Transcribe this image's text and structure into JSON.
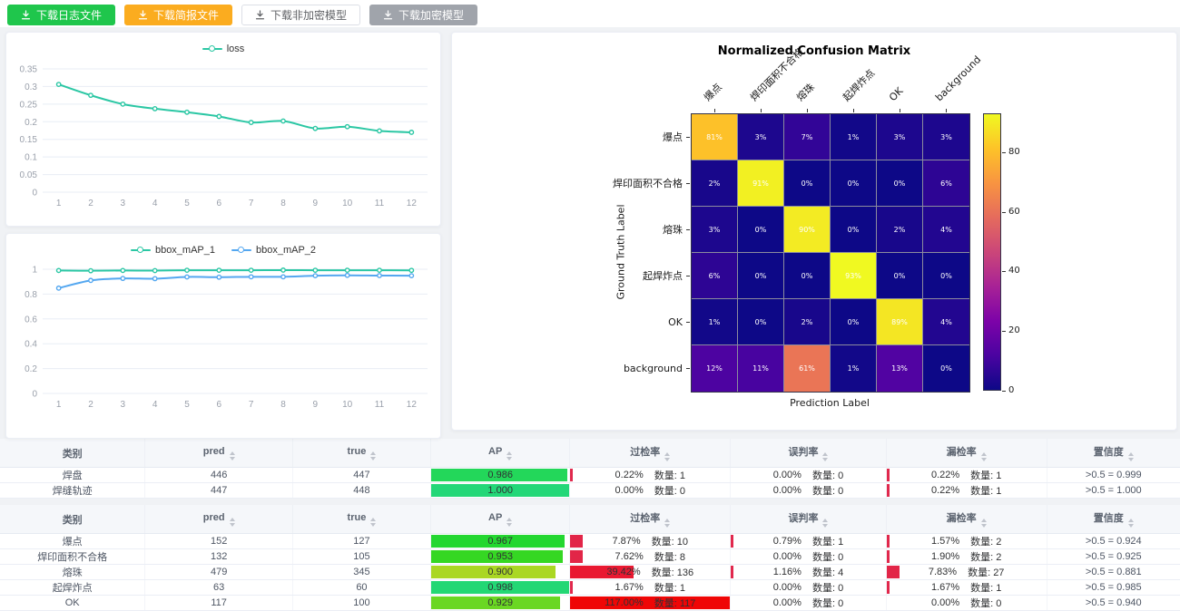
{
  "toolbar": {
    "buttons": [
      {
        "id": "download-log",
        "label": "下载日志文件",
        "bg": "#1fc64c",
        "fg": "#ffffff",
        "border": "#1fc64c"
      },
      {
        "id": "download-brief",
        "label": "下载简报文件",
        "bg": "#fbac1f",
        "fg": "#ffffff",
        "border": "#fbac1f"
      },
      {
        "id": "download-plain-model",
        "label": "下载非加密模型",
        "bg": "#ffffff",
        "fg": "#606266",
        "border": "#dcdfe6"
      },
      {
        "id": "download-encrypted-model",
        "label": "下载加密模型",
        "bg": "#a0a4ab",
        "fg": "#ffffff",
        "border": "#a0a4ab"
      }
    ]
  },
  "chart_data": [
    {
      "type": "line",
      "title": "",
      "x": [
        1,
        2,
        3,
        4,
        5,
        6,
        7,
        8,
        9,
        10,
        11,
        12
      ],
      "series": [
        {
          "name": "loss",
          "color": "#2bc7a4",
          "values": [
            0.306,
            0.275,
            0.25,
            0.237,
            0.227,
            0.215,
            0.198,
            0.202,
            0.181,
            0.186,
            0.174,
            0.17
          ]
        }
      ],
      "ylim": [
        0,
        0.35
      ],
      "yticks": [
        "0",
        "0.05",
        "0.1",
        "0.15",
        "0.2",
        "0.25",
        "0.3",
        "0.35"
      ],
      "grid": true,
      "legend_position": "top"
    },
    {
      "type": "line",
      "title": "",
      "x": [
        1,
        2,
        3,
        4,
        5,
        6,
        7,
        8,
        9,
        10,
        11,
        12
      ],
      "series": [
        {
          "name": "bbox_mAP_1",
          "color": "#2bc7a4",
          "values": [
            0.99,
            0.988,
            0.99,
            0.989,
            0.992,
            0.992,
            0.992,
            0.993,
            0.992,
            0.992,
            0.992,
            0.991
          ]
        },
        {
          "name": "bbox_mAP_2",
          "color": "#54a7f0",
          "values": [
            0.848,
            0.91,
            0.926,
            0.924,
            0.938,
            0.936,
            0.939,
            0.939,
            0.948,
            0.951,
            0.949,
            0.948
          ]
        }
      ],
      "ylim": [
        0,
        1
      ],
      "yticks": [
        "0",
        "0.2",
        "0.4",
        "0.6",
        "0.8",
        "1"
      ],
      "grid": true,
      "legend_position": "top"
    },
    {
      "type": "heatmap",
      "title": "Normalized Confusion Matrix",
      "xlabel": "Prediction Label",
      "ylabel": "Ground Truth Label",
      "labels": [
        "爆点",
        "焊印面积不合格",
        "熔珠",
        "起焊炸点",
        "OK",
        "background"
      ],
      "matrix": [
        [
          81,
          3,
          7,
          1,
          3,
          3
        ],
        [
          2,
          91,
          0,
          0,
          0,
          6
        ],
        [
          3,
          0,
          90,
          0,
          2,
          4
        ],
        [
          6,
          0,
          0,
          93,
          0,
          0
        ],
        [
          1,
          0,
          2,
          0,
          89,
          4
        ],
        [
          12,
          11,
          61,
          1,
          13,
          0
        ]
      ],
      "unit": "%",
      "vmax": 93,
      "colorbar_ticks": [
        0,
        20,
        40,
        60,
        80
      ],
      "colormap": "plasma",
      "colormap_stops": [
        [
          0,
          "#0d0887"
        ],
        [
          0.125,
          "#4b03a1"
        ],
        [
          0.25,
          "#7d03a8"
        ],
        [
          0.375,
          "#a82296"
        ],
        [
          0.5,
          "#cb4679"
        ],
        [
          0.625,
          "#e56b5d"
        ],
        [
          0.75,
          "#f89441"
        ],
        [
          0.875,
          "#fdc328"
        ],
        [
          1,
          "#f0f921"
        ]
      ]
    }
  ],
  "tables": [
    {
      "headers": [
        {
          "label": "类别",
          "sortable": false
        },
        {
          "label": "pred",
          "sortable": true
        },
        {
          "label": "true",
          "sortable": true
        },
        {
          "label": "AP",
          "sortable": true
        },
        {
          "label": "过检率",
          "sortable": true
        },
        {
          "label": "误判率",
          "sortable": true
        },
        {
          "label": "漏检率",
          "sortable": true
        },
        {
          "label": "置信度",
          "sortable": true
        }
      ],
      "count_label": "数量:",
      "rows": [
        {
          "category": "焊盘",
          "pred": "446",
          "true": "447",
          "ap": "0.986",
          "over": {
            "pct": "0.22%",
            "count": "1"
          },
          "mis": {
            "pct": "0.00%",
            "count": "0"
          },
          "miss": {
            "pct": "0.22%",
            "count": "1"
          },
          "conf": ">0.5 = 0.999"
        },
        {
          "category": "焊缝轨迹",
          "pred": "447",
          "true": "448",
          "ap": "1.000",
          "over": {
            "pct": "0.00%",
            "count": "0"
          },
          "mis": {
            "pct": "0.00%",
            "count": "0"
          },
          "miss": {
            "pct": "0.22%",
            "count": "1"
          },
          "conf": ">0.5 = 1.000"
        }
      ]
    },
    {
      "headers": [
        {
          "label": "类别",
          "sortable": false
        },
        {
          "label": "pred",
          "sortable": true
        },
        {
          "label": "true",
          "sortable": true
        },
        {
          "label": "AP",
          "sortable": true
        },
        {
          "label": "过检率",
          "sortable": true
        },
        {
          "label": "误判率",
          "sortable": true
        },
        {
          "label": "漏检率",
          "sortable": true
        },
        {
          "label": "置信度",
          "sortable": true
        }
      ],
      "count_label": "数量:",
      "rows": [
        {
          "category": "爆点",
          "pred": "152",
          "true": "127",
          "ap": "0.967",
          "over": {
            "pct": "7.87%",
            "count": "10"
          },
          "mis": {
            "pct": "0.79%",
            "count": "1"
          },
          "miss": {
            "pct": "1.57%",
            "count": "2"
          },
          "conf": ">0.5 = 0.924"
        },
        {
          "category": "焊印面积不合格",
          "pred": "132",
          "true": "105",
          "ap": "0.953",
          "over": {
            "pct": "7.62%",
            "count": "8"
          },
          "mis": {
            "pct": "0.00%",
            "count": "0"
          },
          "miss": {
            "pct": "1.90%",
            "count": "2"
          },
          "conf": ">0.5 = 0.925"
        },
        {
          "category": "熔珠",
          "pred": "479",
          "true": "345",
          "ap": "0.900",
          "over": {
            "pct": "39.42%",
            "count": "136"
          },
          "mis": {
            "pct": "1.16%",
            "count": "4"
          },
          "miss": {
            "pct": "7.83%",
            "count": "27"
          },
          "conf": ">0.5 = 0.881"
        },
        {
          "category": "起焊炸点",
          "pred": "63",
          "true": "60",
          "ap": "0.998",
          "over": {
            "pct": "1.67%",
            "count": "1"
          },
          "mis": {
            "pct": "0.00%",
            "count": "0"
          },
          "miss": {
            "pct": "1.67%",
            "count": "1"
          },
          "conf": ">0.5 = 0.985"
        },
        {
          "category": "OK",
          "pred": "117",
          "true": "100",
          "ap": "0.929",
          "over": {
            "pct": "117.00%",
            "count": "117"
          },
          "mis": {
            "pct": "0.00%",
            "count": "0"
          },
          "miss": {
            "pct": "0.00%",
            "count": "0"
          },
          "conf": ">0.5 = 0.940"
        }
      ]
    }
  ],
  "colors": {
    "accent_teal": "#2bc7a4",
    "accent_blue": "#54a7f0",
    "table_header_bg": "#f5f7fa",
    "page_bg": "#f0f2f5"
  }
}
